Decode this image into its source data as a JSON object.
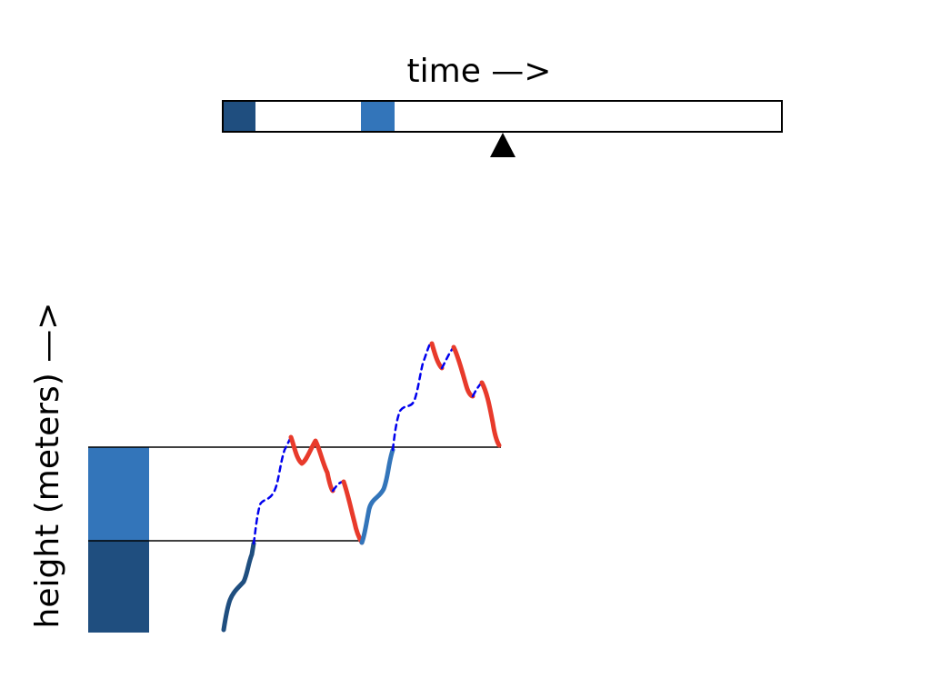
{
  "labels": {
    "x_axis": "time —>",
    "y_axis": "height (meters) —>"
  },
  "colors": {
    "dark_blue": "#1f4e7f",
    "mid_blue": "#3375ba",
    "dashed_blue": "#0000ee",
    "red": "#e83a2b",
    "line": "#000000"
  },
  "timeline": {
    "marker_icon": "triangle-up-icon"
  }
}
